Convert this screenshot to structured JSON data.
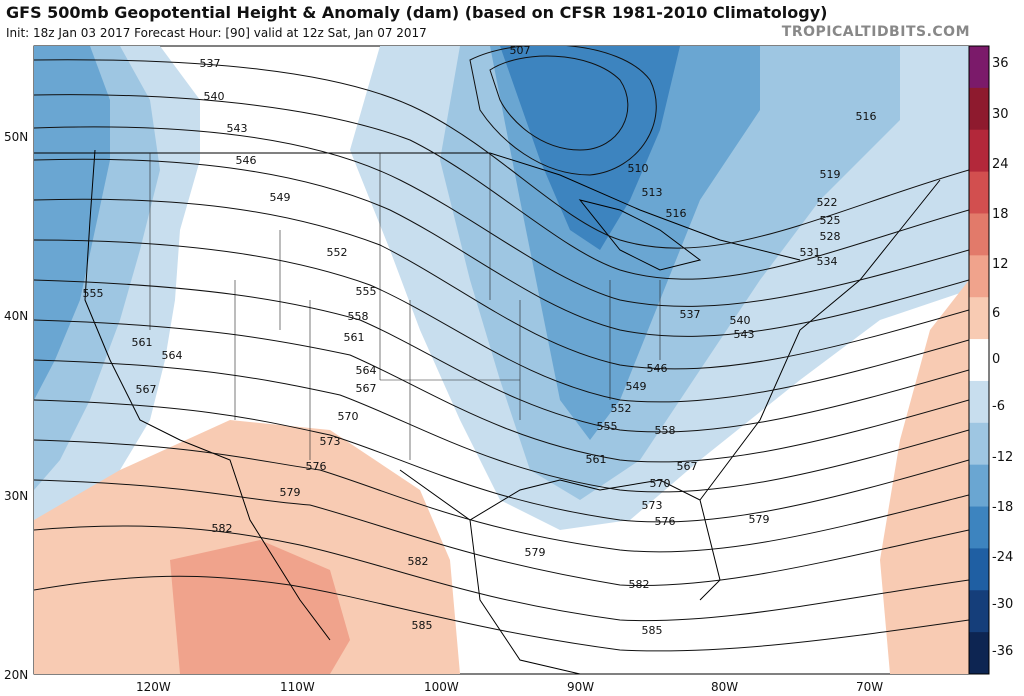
{
  "header": {
    "title": "GFS 500mb Geopotential Height & Anomaly (dam) (based on CFSR 1981-2010 Climatology)",
    "subtitle": "Init: 18z Jan 03 2017   Forecast Hour: [90]   valid at 12z Sat, Jan 07 2017",
    "brand": "TROPICALTIDBITS.COM"
  },
  "colorbar": {
    "labels": [
      "36",
      "30",
      "24",
      "18",
      "12",
      "6",
      "0",
      "-6",
      "-12",
      "-18",
      "-24",
      "-30",
      "-36"
    ],
    "colors": [
      "#7b1a6a",
      "#8e1a2e",
      "#b3283a",
      "#d24f4f",
      "#e27a6a",
      "#f0a38c",
      "#f8cbb3",
      "#ffffff",
      "#c8deee",
      "#9ec6e2",
      "#6aa6d2",
      "#3d84bf",
      "#1f5fa3",
      "#153e7a",
      "#0d2552"
    ]
  },
  "axes": {
    "lat_labels": [
      "50N",
      "40N",
      "30N",
      "20N"
    ],
    "lon_labels": [
      "120W",
      "110W",
      "100W",
      "90W",
      "80W",
      "70W"
    ]
  },
  "contours": {
    "labels": [
      "537",
      "540",
      "543",
      "546",
      "549",
      "552",
      "555",
      "555",
      "558",
      "561",
      "561",
      "564",
      "564",
      "567",
      "567",
      "570",
      "573",
      "576",
      "579",
      "582",
      "582",
      "585",
      "585",
      "507",
      "510",
      "513",
      "516",
      "516",
      "519",
      "522",
      "525",
      "528",
      "531",
      "534",
      "537",
      "540",
      "543",
      "546",
      "549",
      "552",
      "555",
      "558",
      "561",
      "567",
      "570",
      "573",
      "576",
      "579",
      "579",
      "582"
    ]
  }
}
